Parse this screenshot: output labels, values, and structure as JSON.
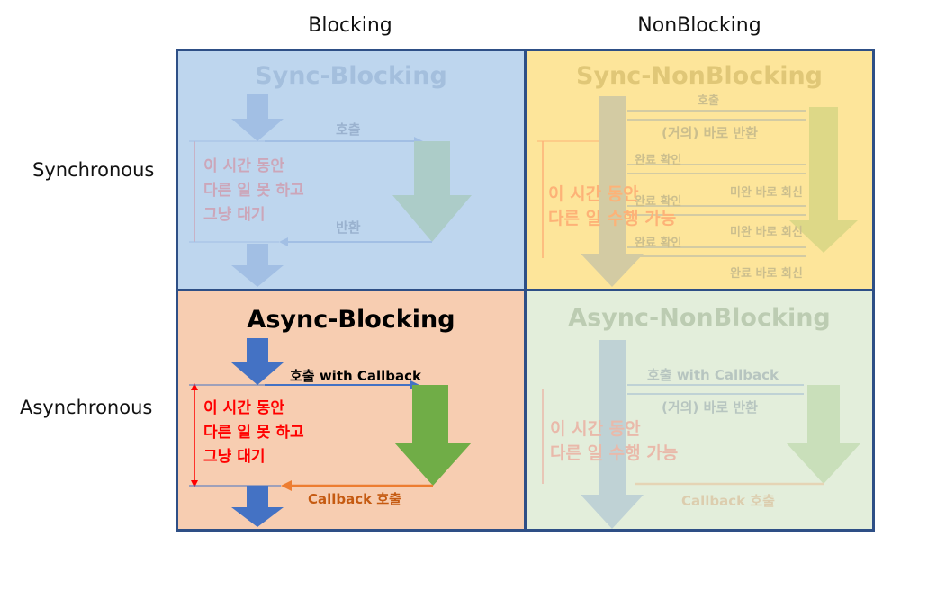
{
  "columns": {
    "blocking": "Blocking",
    "nonblocking": "NonBlocking"
  },
  "rows": {
    "synchronous": "Synchronous",
    "asynchronous": "Asynchronous"
  },
  "quadrants": {
    "sync_blocking": {
      "title": "Sync-Blocking",
      "call": "호출",
      "ret": "반환",
      "wait": [
        "이 시간 동안",
        "다른 일 못 하고",
        "그냥 대기"
      ],
      "bg": "#bed6ee"
    },
    "sync_nonblocking": {
      "title": "Sync-NonBlocking",
      "call": "호출",
      "instant_return": "(거의) 바로 반환",
      "check1": "완료 확인",
      "reply1": "미완 바로 회신",
      "check2": "완료 확인",
      "reply2": "미완 바로 회신",
      "check3": "완료 확인",
      "reply3": "완료 바로 회신",
      "work": [
        "이 시간 동안",
        "다른 일 수행 가능"
      ],
      "bg": "#fde59a"
    },
    "async_blocking": {
      "title": "Async-Blocking",
      "call": "호출 with Callback",
      "callback": "Callback 호출",
      "wait": [
        "이 시간 동안",
        "다른 일 못 하고",
        "그냥 대기"
      ],
      "bg": "#f7cdb1"
    },
    "async_nonblocking": {
      "title": "Async-NonBlocking",
      "call": "호출 with Callback",
      "instant_return": "(거의) 바로 반환",
      "callback": "Callback 호출",
      "work": [
        "이 시간 동안",
        "다른 일 수행 가능"
      ],
      "bg": "#e3eedb"
    }
  },
  "colors": {
    "frame": "#2e4f86",
    "caller_arrow": "#4472c4",
    "callee_arrow": "#70ad47",
    "callback_line": "#ed7d31",
    "wait_text": "#ff0000"
  }
}
